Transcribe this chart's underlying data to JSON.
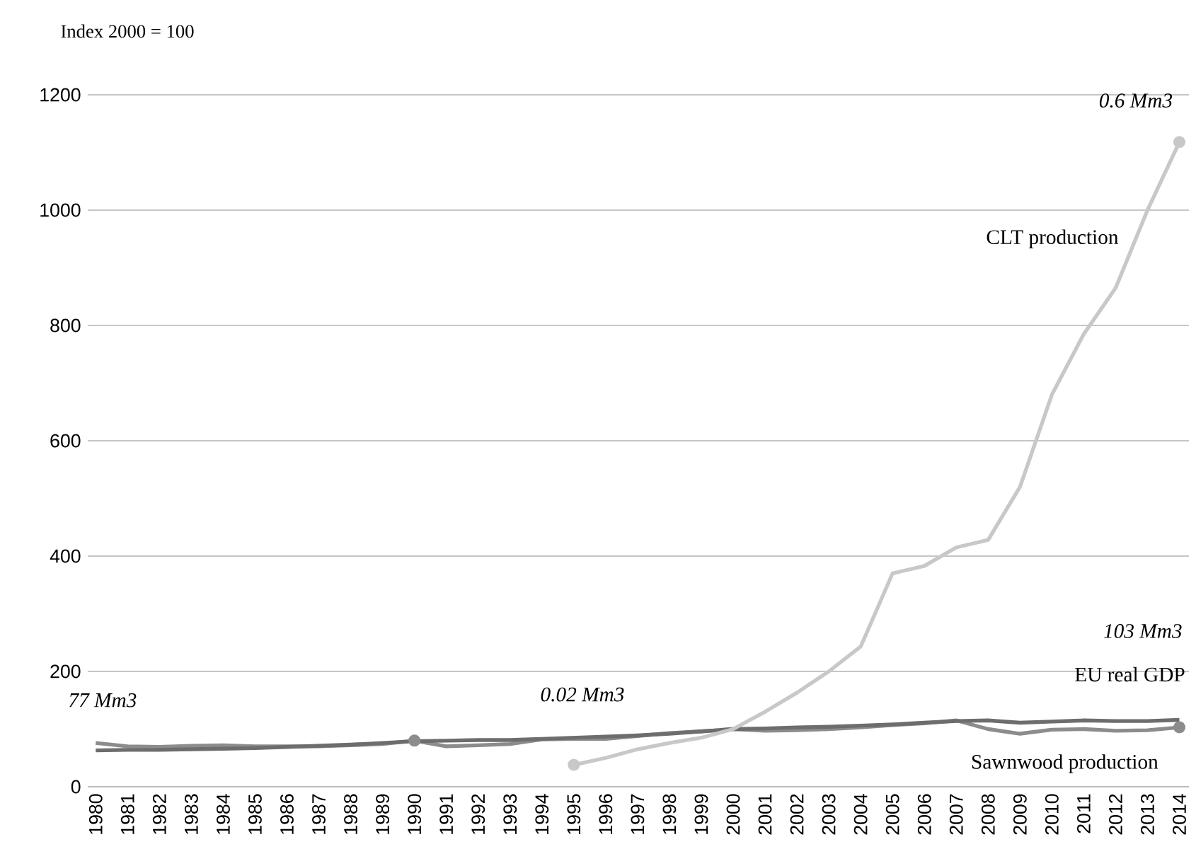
{
  "chart_data": {
    "type": "line",
    "ylabel": "Index 2000 = 100",
    "categories": [
      "1980",
      "1981",
      "1982",
      "1983",
      "1984",
      "1985",
      "1986",
      "1987",
      "1988",
      "1989",
      "1990",
      "1991",
      "1992",
      "1993",
      "1994",
      "1995",
      "1996",
      "1997",
      "1998",
      "1999",
      "2000",
      "2001",
      "2002",
      "2003",
      "2004",
      "2005",
      "2006",
      "2007",
      "2008",
      "2009",
      "2010",
      "2011",
      "2012",
      "2013",
      "2014"
    ],
    "series": [
      {
        "name": "Sawnwood production",
        "color": "#8c8c8c",
        "values": [
          76,
          70,
          69,
          71,
          72,
          70,
          70,
          70,
          72,
          74,
          80,
          70,
          72,
          74,
          82,
          83,
          83,
          88,
          93,
          96,
          100,
          97,
          98,
          100,
          103,
          107,
          110,
          115,
          100,
          92,
          99,
          100,
          97,
          98,
          103
        ]
      },
      {
        "name": "EU real GDP",
        "color": "#6d6d6d",
        "values": [
          63,
          64,
          64,
          65,
          66,
          67,
          69,
          71,
          73,
          76,
          79,
          80,
          81,
          81,
          83,
          85,
          87,
          89,
          92,
          96,
          100,
          101,
          103,
          104,
          106,
          108,
          111,
          114,
          115,
          111,
          113,
          115,
          114,
          114,
          116
        ]
      },
      {
        "name": "CLT production",
        "color": "#c8c8c8",
        "values": [
          null,
          null,
          null,
          null,
          null,
          null,
          null,
          null,
          null,
          null,
          null,
          null,
          null,
          null,
          null,
          38,
          50,
          65,
          76,
          85,
          100,
          130,
          163,
          200,
          243,
          370,
          383,
          415,
          428,
          520,
          680,
          785,
          865,
          1000,
          1118
        ]
      },
      {
        "type": "scatter",
        "color": "#8c8c8c",
        "values": [
          null,
          null,
          null,
          null,
          null,
          null,
          null,
          null,
          null,
          null,
          80,
          null,
          null,
          null,
          null,
          null,
          null,
          null,
          null,
          null,
          null,
          null,
          null,
          null,
          null,
          null,
          null,
          null,
          null,
          null,
          null,
          null,
          null,
          null,
          103
        ]
      },
      {
        "type": "scatter",
        "color": "#c8c8c8",
        "values": [
          null,
          null,
          null,
          null,
          null,
          null,
          null,
          null,
          null,
          null,
          null,
          null,
          null,
          null,
          null,
          38,
          null,
          null,
          null,
          null,
          null,
          null,
          null,
          null,
          null,
          null,
          null,
          null,
          null,
          null,
          null,
          null,
          null,
          null,
          1118
        ]
      }
    ],
    "ylim": [
      0,
      1200
    ],
    "yticks": [
      0,
      200,
      400,
      600,
      800,
      1000,
      1200
    ],
    "grid": "y",
    "annotations": [
      "77 Mm3",
      "0.02 Mm3",
      "103 Mm3",
      "0.6 Mm3"
    ]
  }
}
